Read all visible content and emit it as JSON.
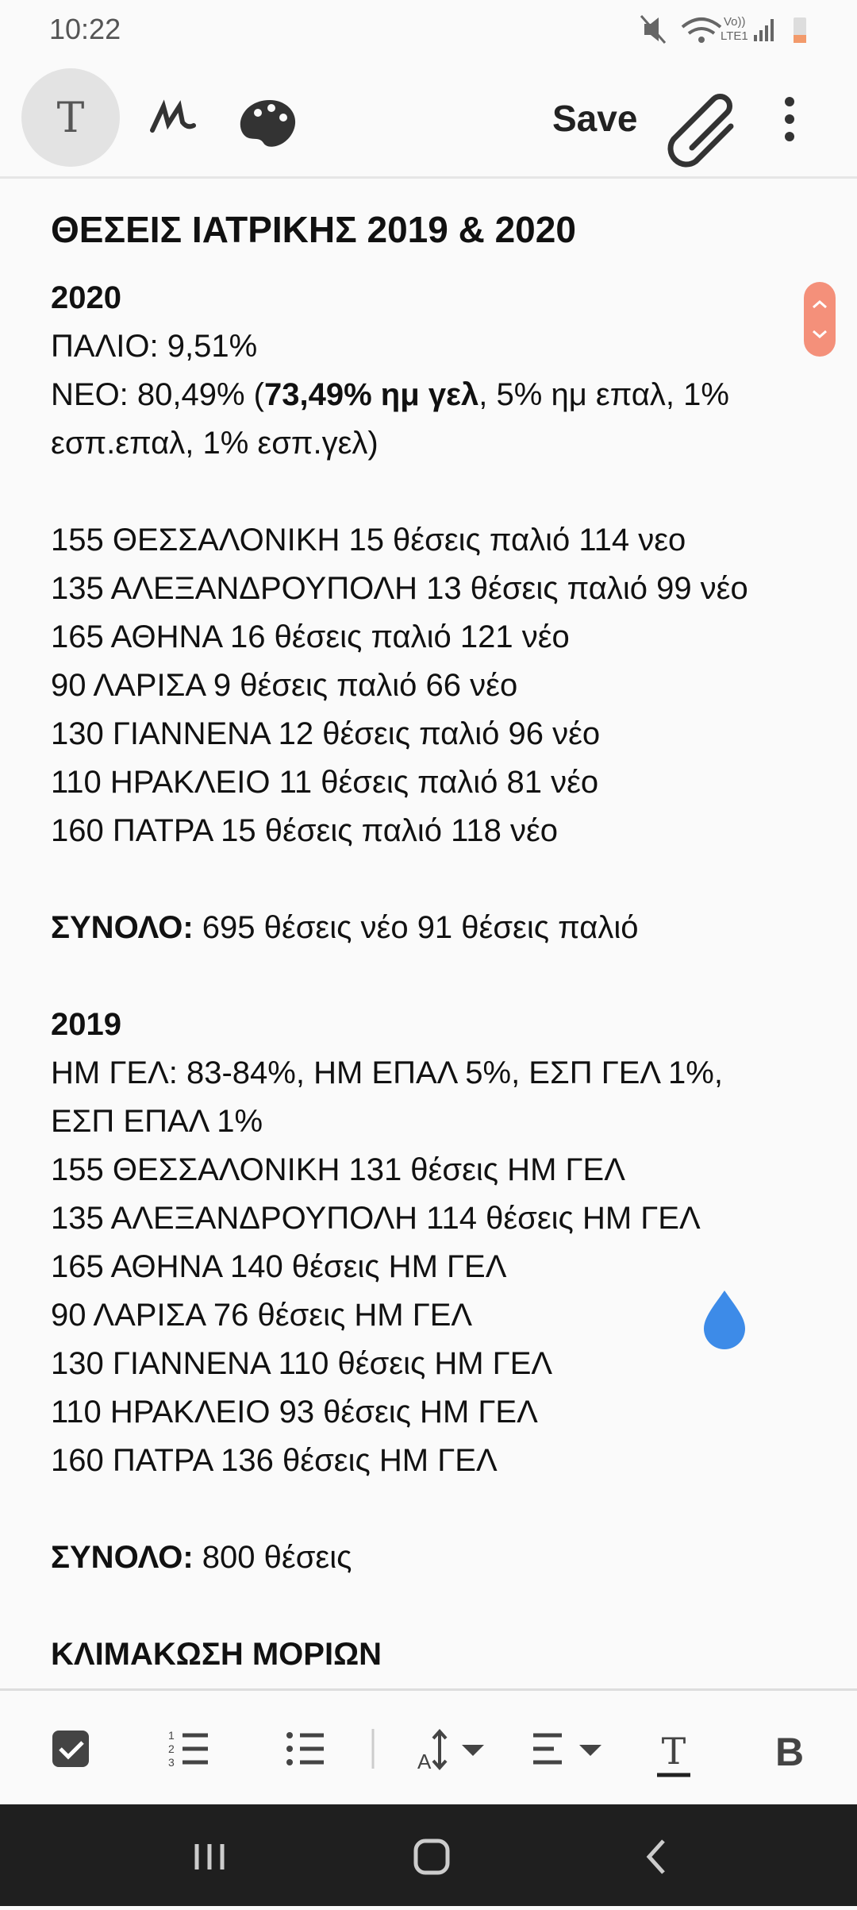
{
  "status_bar": {
    "time": "10:22",
    "volte": "Vo))",
    "lte": "LTE1"
  },
  "toolbar": {
    "save": "Save"
  },
  "note": {
    "title": "ΘΕΣΕΙΣ ΙΑΤΡΙΚΗΣ 2019 & 2020",
    "paragraphs": [
      [
        [
          {
            "text": "2020",
            "bold": true
          }
        ],
        [
          "ΠΑΛΙΟ: 9,51%"
        ],
        [
          "ΝΕΟ: 80,49% (",
          {
            "text": "73,49% ημ  γελ",
            "bold": true
          },
          ", 5% ημ επαλ, 1% εσπ.επαλ, 1% εσπ.γελ)"
        ]
      ],
      [
        [
          "155 ΘΕΣΣΑΛΟΝΙΚΗ 15 θέσεις παλιό 114 νεο"
        ],
        [
          "135 ΑΛΕΞΑΝΔΡΟΥΠΟΛΗ 13 θέσεις παλιό 99 νέο"
        ],
        [
          "165 ΑΘΗΝΑ 16 θέσεις παλιό 121 νέο"
        ],
        [
          "90 ΛΑΡΙΣΑ 9 θέσεις παλιό 66 νέο"
        ],
        [
          "130 ΓΙΑΝΝΕΝΑ 12 θέσεις παλιό 96 νέο"
        ],
        [
          "110 ΗΡΑΚΛΕΙΟ 11 θέσεις παλιό 81 νέο"
        ],
        [
          "160 ΠΑΤΡΑ 15 θέσεις παλιό 118 νέο"
        ]
      ],
      [
        [
          {
            "text": "ΣΥΝΟΛΟ:",
            "bold": true
          },
          " 695 θέσεις νέο 91 θέσεις παλιό"
        ]
      ],
      [
        [
          {
            "text": "2019",
            "bold": true
          }
        ],
        [
          "ΗΜ ΓΕΛ: 83-84%, ΗΜ ΕΠΑΛ 5%, ΕΣΠ ΓΕΛ 1%, ΕΣΠ ΕΠΑΛ 1%"
        ],
        [
          "155 ΘΕΣΣΑΛΟΝΙΚΗ 131 θέσεις ΗΜ ΓΕΛ"
        ],
        [
          "135 ΑΛΕΞΑΝΔΡΟΥΠΟΛΗ 114 θέσεις ΗΜ ΓΕΛ"
        ],
        [
          "165 ΑΘΗΝΑ 140 θέσεις ΗΜ ΓΕΛ"
        ],
        [
          "90 ΛΑΡΙΣΑ 76 θέσεις ΗΜ ΓΕΛ"
        ],
        [
          "130 ΓΙΑΝΝΕΝΑ 110 θέσεις ΗΜ ΓΕΛ"
        ],
        [
          "110 ΗΡΑΚΛΕΙΟ 93 θέσεις ΗΜ ΓΕΛ"
        ],
        [
          "160 ΠΑΤΡΑ 136 θέσεις ΗΜ ΓΕΛ"
        ]
      ],
      [
        [
          {
            "text": "ΣΥΝΟΛΟ:",
            "bold": true
          },
          " 800 θέσεις"
        ]
      ],
      [
        [
          {
            "text": "ΚΛΙΜΑΚΩΣΗ ΜΟΡΙΩΝ",
            "bold": true
          }
        ]
      ]
    ]
  }
}
